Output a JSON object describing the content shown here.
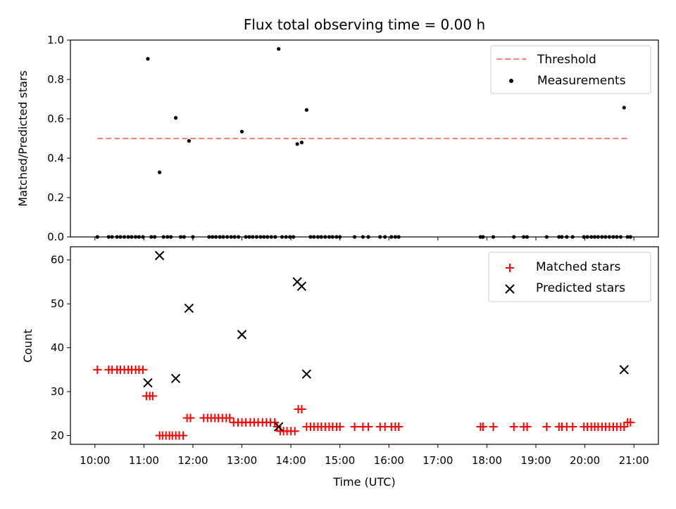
{
  "chart_data": [
    {
      "type": "scatter",
      "title": "Flux total observing time = 0.00 h",
      "xlabel": "",
      "ylabel": "Matched/Predicted stars",
      "xlim": [
        9.5,
        21.5
      ],
      "ylim": [
        0,
        1.0
      ],
      "yticks": [
        0.0,
        0.2,
        0.4,
        0.6,
        0.8,
        1.0
      ],
      "ytick_labels": [
        "0.0",
        "0.2",
        "0.4",
        "0.6",
        "0.8",
        "1.0"
      ],
      "legend": {
        "placement": "top-right",
        "entries": [
          "Threshold",
          "Measurements"
        ]
      },
      "threshold": {
        "name": "Threshold",
        "value": 0.5,
        "x_start": 10.05,
        "x_end": 20.87,
        "color": "#ff7f7f"
      },
      "series": [
        {
          "name": "Measurements",
          "marker": "dot",
          "color": "#000000",
          "x": [
            10.05,
            10.28,
            10.35,
            10.45,
            10.52,
            10.6,
            10.68,
            10.75,
            10.83,
            10.9,
            10.98,
            11.08,
            11.15,
            11.22,
            11.32,
            11.4,
            11.48,
            11.55,
            11.65,
            11.75,
            11.82,
            11.92,
            12.0,
            12.33,
            12.4,
            12.47,
            12.55,
            12.62,
            12.7,
            12.78,
            12.85,
            12.93,
            13.0,
            13.08,
            13.15,
            13.22,
            13.3,
            13.38,
            13.45,
            13.52,
            13.6,
            13.68,
            13.75,
            13.82,
            13.9,
            13.98,
            14.05,
            14.13,
            14.22,
            14.32,
            14.4,
            14.47,
            14.55,
            14.62,
            14.7,
            14.78,
            14.85,
            14.93,
            15.0,
            15.3,
            15.47,
            15.58,
            15.82,
            15.92,
            16.05,
            16.13,
            16.2,
            17.87,
            17.92,
            18.13,
            18.55,
            18.75,
            18.82,
            19.22,
            19.47,
            19.53,
            19.63,
            19.75,
            19.98,
            20.05,
            20.13,
            20.2,
            20.27,
            20.35,
            20.42,
            20.5,
            20.58,
            20.65,
            20.73,
            20.8,
            20.87,
            20.93
          ],
          "y": [
            0,
            0,
            0,
            0,
            0,
            0,
            0,
            0,
            0,
            0,
            0,
            0.905,
            0,
            0,
            0.328,
            0,
            0,
            0,
            0.605,
            0,
            0,
            0.488,
            0,
            0,
            0,
            0,
            0,
            0,
            0,
            0,
            0,
            0,
            0.535,
            0,
            0,
            0,
            0,
            0,
            0,
            0,
            0,
            0,
            0.955,
            0,
            0,
            0,
            0,
            0.472,
            0.48,
            0.645,
            0,
            0,
            0,
            0,
            0,
            0,
            0,
            0,
            0,
            0,
            0,
            0,
            0,
            0,
            0,
            0,
            0,
            0,
            0,
            0,
            0,
            0,
            0,
            0,
            0,
            0,
            0,
            0,
            0,
            0,
            0,
            0,
            0,
            0,
            0,
            0,
            0,
            0,
            0,
            0.657,
            0,
            0
          ]
        }
      ]
    },
    {
      "type": "scatter",
      "title": "",
      "xlabel": "Time (UTC)",
      "ylabel": "Count",
      "xlim": [
        9.5,
        21.5
      ],
      "ylim": [
        18,
        63
      ],
      "yticks": [
        20,
        30,
        40,
        50,
        60
      ],
      "ytick_labels": [
        "20",
        "30",
        "40",
        "50",
        "60"
      ],
      "xticks": [
        10,
        11,
        12,
        13,
        14,
        15,
        16,
        17,
        18,
        19,
        20,
        21
      ],
      "xtick_labels": [
        "10:00",
        "11:00",
        "12:00",
        "13:00",
        "14:00",
        "15:00",
        "16:00",
        "17:00",
        "18:00",
        "19:00",
        "20:00",
        "21:00"
      ],
      "legend": {
        "placement": "top-right",
        "entries": [
          "Matched stars",
          "Predicted stars"
        ]
      },
      "series": [
        {
          "name": "Matched stars",
          "marker": "plus",
          "color": "#ff0000",
          "x": [
            10.05,
            10.28,
            10.35,
            10.45,
            10.52,
            10.6,
            10.68,
            10.75,
            10.83,
            10.9,
            10.98,
            11.05,
            11.12,
            11.18,
            11.32,
            11.38,
            11.45,
            11.52,
            11.58,
            11.65,
            11.72,
            11.8,
            11.88,
            11.95,
            12.22,
            12.3,
            12.37,
            12.45,
            12.52,
            12.6,
            12.68,
            12.75,
            12.83,
            12.92,
            13.0,
            13.08,
            13.17,
            13.25,
            13.33,
            13.42,
            13.5,
            13.58,
            13.67,
            13.72,
            13.78,
            13.85,
            13.92,
            14.0,
            14.08,
            14.15,
            14.22,
            14.32,
            14.4,
            14.47,
            14.55,
            14.62,
            14.7,
            14.78,
            14.85,
            14.93,
            15.0,
            15.3,
            15.47,
            15.58,
            15.82,
            15.92,
            16.05,
            16.13,
            16.2,
            17.87,
            17.92,
            18.13,
            18.55,
            18.75,
            18.82,
            19.22,
            19.47,
            19.53,
            19.63,
            19.75,
            19.98,
            20.05,
            20.13,
            20.2,
            20.27,
            20.35,
            20.42,
            20.5,
            20.58,
            20.65,
            20.73,
            20.8,
            20.87,
            20.93
          ],
          "y": [
            35,
            35,
            35,
            35,
            35,
            35,
            35,
            35,
            35,
            35,
            35,
            29,
            29,
            29,
            20,
            20,
            20,
            20,
            20,
            20,
            20,
            20,
            24,
            24,
            24,
            24,
            24,
            24,
            24,
            24,
            24,
            24,
            23,
            23,
            23,
            23,
            23,
            23,
            23,
            23,
            23,
            23,
            23,
            22,
            21,
            21,
            21,
            21,
            21,
            26,
            26,
            22,
            22,
            22,
            22,
            22,
            22,
            22,
            22,
            22,
            22,
            22,
            22,
            22,
            22,
            22,
            22,
            22,
            22,
            22,
            22,
            22,
            22,
            22,
            22,
            22,
            22,
            22,
            22,
            22,
            22,
            22,
            22,
            22,
            22,
            22,
            22,
            22,
            22,
            22,
            22,
            22,
            23,
            23
          ]
        },
        {
          "name": "Predicted stars",
          "marker": "x",
          "color": "#000000",
          "x": [
            11.08,
            11.32,
            11.65,
            11.92,
            13.0,
            13.75,
            14.13,
            14.22,
            14.32,
            20.8
          ],
          "y": [
            32,
            61,
            33,
            49,
            43,
            22,
            55,
            54,
            34,
            35
          ]
        }
      ]
    }
  ]
}
